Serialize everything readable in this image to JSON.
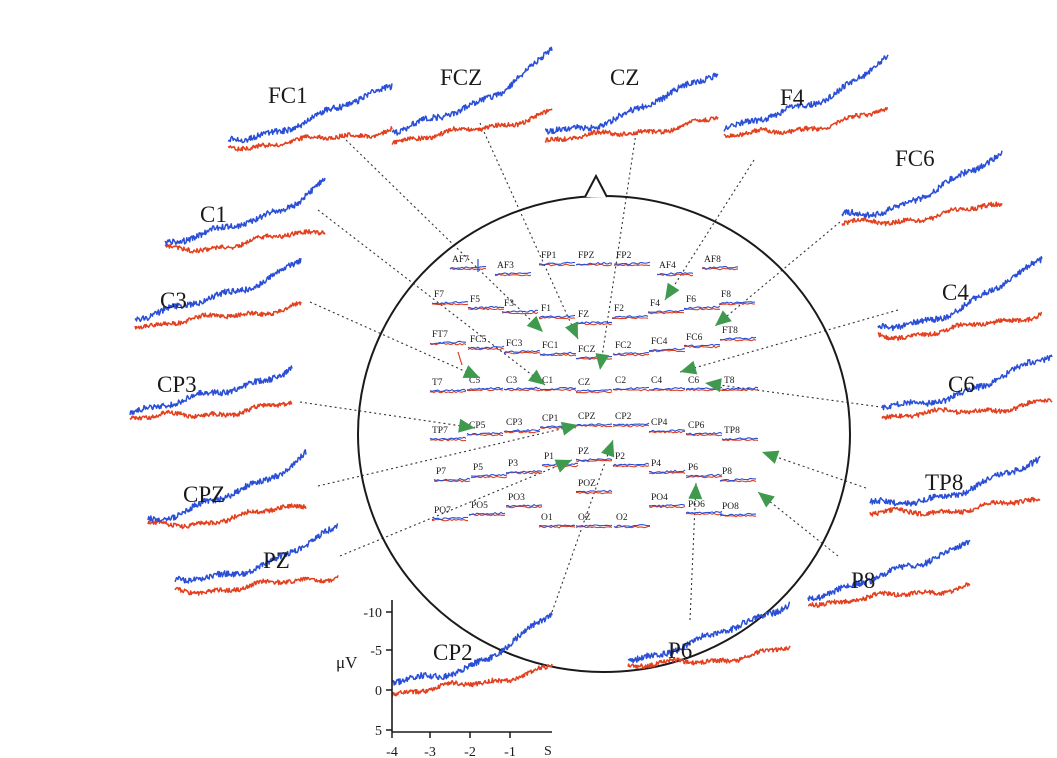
{
  "colors": {
    "blue_trace": "#2a4fd6",
    "red_trace": "#e2401e",
    "arrow": "#3f9a4e",
    "ink": "#1a1a1a"
  },
  "head_nose_icon": "triangle-nose-icon",
  "electrodes": [
    {
      "label": "AF7"
    },
    {
      "label": "AF3"
    },
    {
      "label": "FP1"
    },
    {
      "label": "FPZ"
    },
    {
      "label": "FP2"
    },
    {
      "label": "AF4"
    },
    {
      "label": "AF8"
    },
    {
      "label": "F7"
    },
    {
      "label": "F5"
    },
    {
      "label": "F3"
    },
    {
      "label": "F1"
    },
    {
      "label": "FZ"
    },
    {
      "label": "F2"
    },
    {
      "label": "F4"
    },
    {
      "label": "F6"
    },
    {
      "label": "F8"
    },
    {
      "label": "FT7"
    },
    {
      "label": "FC5"
    },
    {
      "label": "FC3"
    },
    {
      "label": "FC1"
    },
    {
      "label": "FCZ"
    },
    {
      "label": "FC2"
    },
    {
      "label": "FC4"
    },
    {
      "label": "FC6"
    },
    {
      "label": "FT8"
    },
    {
      "label": "T7"
    },
    {
      "label": "C5"
    },
    {
      "label": "C3"
    },
    {
      "label": "C1"
    },
    {
      "label": "CZ"
    },
    {
      "label": "C2"
    },
    {
      "label": "C4"
    },
    {
      "label": "C6"
    },
    {
      "label": "T8"
    },
    {
      "label": "TP7"
    },
    {
      "label": "CP5"
    },
    {
      "label": "CP3"
    },
    {
      "label": "CP1"
    },
    {
      "label": "CPZ"
    },
    {
      "label": "CP2"
    },
    {
      "label": "CP4"
    },
    {
      "label": "CP6"
    },
    {
      "label": "TP8"
    },
    {
      "label": "P7"
    },
    {
      "label": "P5"
    },
    {
      "label": "P3"
    },
    {
      "label": "P1"
    },
    {
      "label": "PZ"
    },
    {
      "label": "P2"
    },
    {
      "label": "P4"
    },
    {
      "label": "P6"
    },
    {
      "label": "P8"
    },
    {
      "label": "POZ"
    },
    {
      "label": "PO7"
    },
    {
      "label": "PO5"
    },
    {
      "label": "PO3"
    },
    {
      "label": "PO4"
    },
    {
      "label": "PO6"
    },
    {
      "label": "PO8"
    },
    {
      "label": "O1"
    },
    {
      "label": "OZ"
    },
    {
      "label": "O2"
    }
  ],
  "enlarged_traces": [
    {
      "label": "FC1"
    },
    {
      "label": "FCZ"
    },
    {
      "label": "CZ"
    },
    {
      "label": "F4"
    },
    {
      "label": "FC6"
    },
    {
      "label": "C1"
    },
    {
      "label": "C4"
    },
    {
      "label": "C3"
    },
    {
      "label": "C6"
    },
    {
      "label": "CP3"
    },
    {
      "label": "TP8"
    },
    {
      "label": "CPZ"
    },
    {
      "label": "PZ"
    },
    {
      "label": "P8"
    },
    {
      "label": "CP2"
    },
    {
      "label": "P6"
    }
  ],
  "axis": {
    "unit_label": "μV",
    "y_ticks": [
      "-10",
      "-5",
      "0",
      "5"
    ],
    "x_ticks": [
      "-4",
      "-3",
      "-2",
      "-1"
    ],
    "x_unit": "S"
  }
}
